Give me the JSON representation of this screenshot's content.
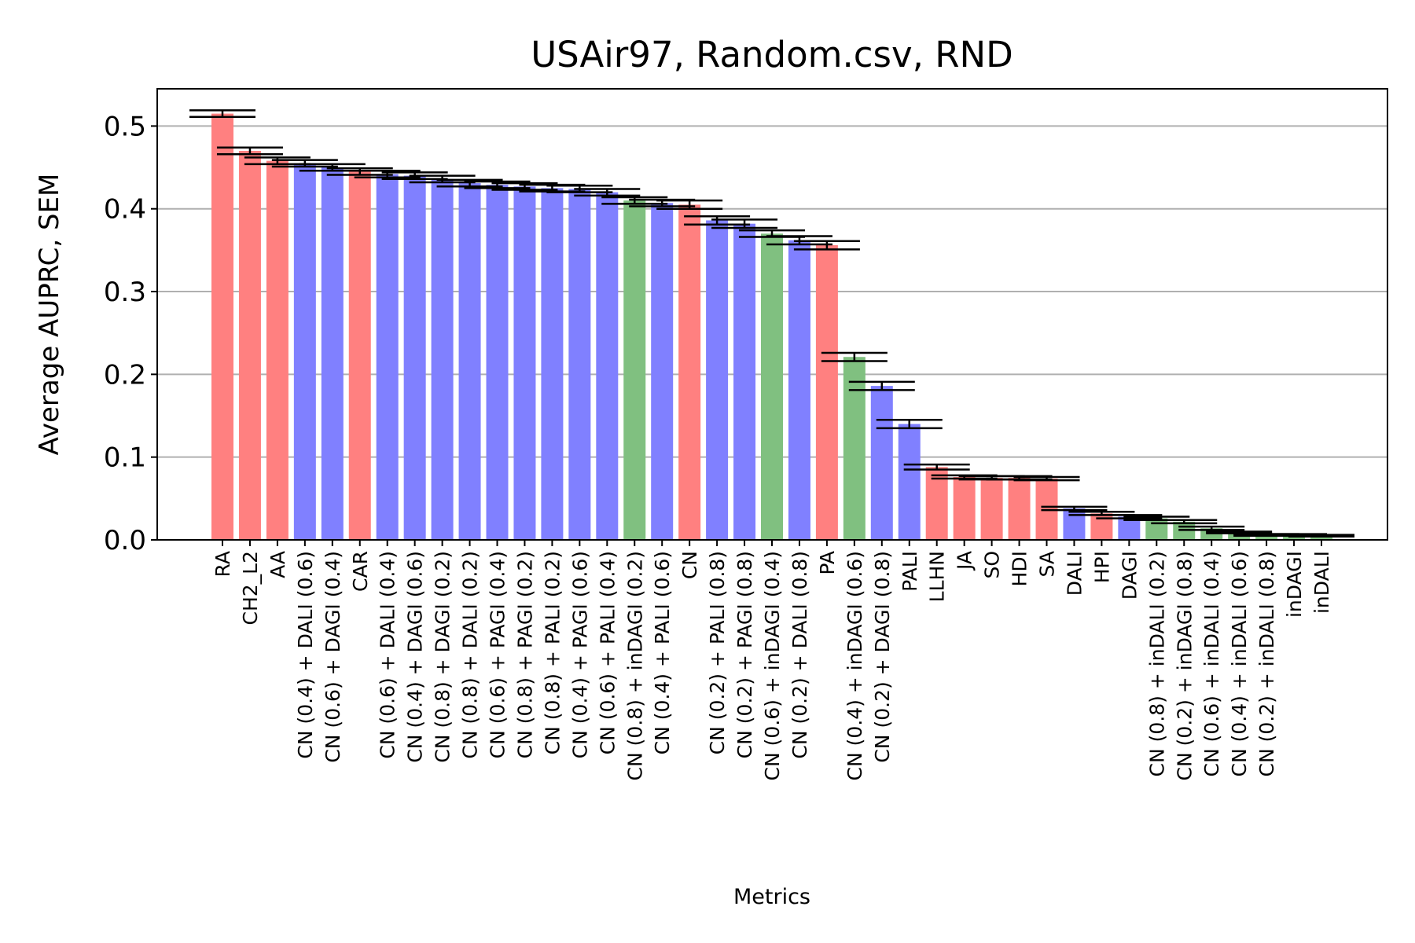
{
  "chart_data": {
    "type": "bar",
    "title": "USAir97, Random.csv, RND",
    "xlabel": "Metrics",
    "ylabel": "Average AUPRC, SEM",
    "ylim": [
      0,
      0.545
    ],
    "yticks": [
      "0.0",
      "0.1",
      "0.2",
      "0.3",
      "0.4",
      "0.5"
    ],
    "grid": "y",
    "colors": {
      "red": "#ff8080",
      "blue": "#8080ff",
      "green": "#80c080"
    },
    "bars": [
      {
        "label": "RA",
        "value": 0.515,
        "err": 0.004,
        "color": "red"
      },
      {
        "label": "CH2_L2",
        "value": 0.47,
        "err": 0.004,
        "color": "red"
      },
      {
        "label": "AA",
        "value": 0.458,
        "err": 0.004,
        "color": "red"
      },
      {
        "label": "CN (0.4) + DALI (0.6)",
        "value": 0.455,
        "err": 0.004,
        "color": "blue"
      },
      {
        "label": "CN (0.6) + DAGI (0.4)",
        "value": 0.45,
        "err": 0.004,
        "color": "blue"
      },
      {
        "label": "CAR",
        "value": 0.445,
        "err": 0.004,
        "color": "red"
      },
      {
        "label": "CN (0.6) + DALI (0.4)",
        "value": 0.442,
        "err": 0.004,
        "color": "blue"
      },
      {
        "label": "CN (0.4) + DAGI (0.6)",
        "value": 0.44,
        "err": 0.004,
        "color": "blue"
      },
      {
        "label": "CN (0.8) + DAGI (0.2)",
        "value": 0.436,
        "err": 0.004,
        "color": "blue"
      },
      {
        "label": "CN (0.8) + DALI (0.2)",
        "value": 0.431,
        "err": 0.004,
        "color": "blue"
      },
      {
        "label": "CN (0.6) + PAGI (0.4)",
        "value": 0.429,
        "err": 0.004,
        "color": "blue"
      },
      {
        "label": "CN (0.8) + PAGI (0.2)",
        "value": 0.427,
        "err": 0.004,
        "color": "blue"
      },
      {
        "label": "CN (0.8) + PALI (0.2)",
        "value": 0.425,
        "err": 0.004,
        "color": "blue"
      },
      {
        "label": "CN (0.4) + PAGI (0.6)",
        "value": 0.424,
        "err": 0.004,
        "color": "blue"
      },
      {
        "label": "CN (0.6) + PALI (0.4)",
        "value": 0.42,
        "err": 0.004,
        "color": "blue"
      },
      {
        "label": "CN (0.8) + inDAGI (0.2)",
        "value": 0.41,
        "err": 0.004,
        "color": "green"
      },
      {
        "label": "CN (0.4) + PALI (0.6)",
        "value": 0.407,
        "err": 0.004,
        "color": "blue"
      },
      {
        "label": "CN",
        "value": 0.405,
        "err": 0.005,
        "color": "red"
      },
      {
        "label": "CN (0.2) + PALI (0.8)",
        "value": 0.386,
        "err": 0.005,
        "color": "blue"
      },
      {
        "label": "CN (0.2) + PAGI (0.8)",
        "value": 0.382,
        "err": 0.005,
        "color": "blue"
      },
      {
        "label": "CN (0.6) + inDAGI (0.4)",
        "value": 0.37,
        "err": 0.004,
        "color": "green"
      },
      {
        "label": "CN (0.2) + DALI (0.8)",
        "value": 0.362,
        "err": 0.005,
        "color": "blue"
      },
      {
        "label": "PA",
        "value": 0.356,
        "err": 0.005,
        "color": "red"
      },
      {
        "label": "CN (0.4) + inDAGI (0.6)",
        "value": 0.221,
        "err": 0.005,
        "color": "green"
      },
      {
        "label": "CN (0.2) + DAGI (0.8)",
        "value": 0.186,
        "err": 0.005,
        "color": "blue"
      },
      {
        "label": "PALI",
        "value": 0.14,
        "err": 0.005,
        "color": "blue"
      },
      {
        "label": "LLHN",
        "value": 0.088,
        "err": 0.003,
        "color": "red"
      },
      {
        "label": "JA",
        "value": 0.076,
        "err": 0.002,
        "color": "red"
      },
      {
        "label": "SO",
        "value": 0.075,
        "err": 0.002,
        "color": "red"
      },
      {
        "label": "HDI",
        "value": 0.075,
        "err": 0.002,
        "color": "red"
      },
      {
        "label": "SA",
        "value": 0.074,
        "err": 0.002,
        "color": "red"
      },
      {
        "label": "DALI",
        "value": 0.038,
        "err": 0.002,
        "color": "blue"
      },
      {
        "label": "HPI",
        "value": 0.032,
        "err": 0.002,
        "color": "red"
      },
      {
        "label": "DAGI",
        "value": 0.028,
        "err": 0.002,
        "color": "blue"
      },
      {
        "label": "CN (0.8) + inDALI (0.2)",
        "value": 0.026,
        "err": 0.002,
        "color": "green"
      },
      {
        "label": "CN (0.2) + inDAGI (0.8)",
        "value": 0.022,
        "err": 0.002,
        "color": "green"
      },
      {
        "label": "CN (0.6) + inDALI (0.4)",
        "value": 0.014,
        "err": 0.002,
        "color": "green"
      },
      {
        "label": "CN (0.4) + inDALI (0.6)",
        "value": 0.009,
        "err": 0.001,
        "color": "green"
      },
      {
        "label": "CN (0.2) + inDALI (0.8)",
        "value": 0.006,
        "err": 0.001,
        "color": "green"
      },
      {
        "label": "inDAGI",
        "value": 0.006,
        "err": 0.001,
        "color": "green"
      },
      {
        "label": "inDALI",
        "value": 0.005,
        "err": 0.001,
        "color": "green"
      }
    ]
  }
}
